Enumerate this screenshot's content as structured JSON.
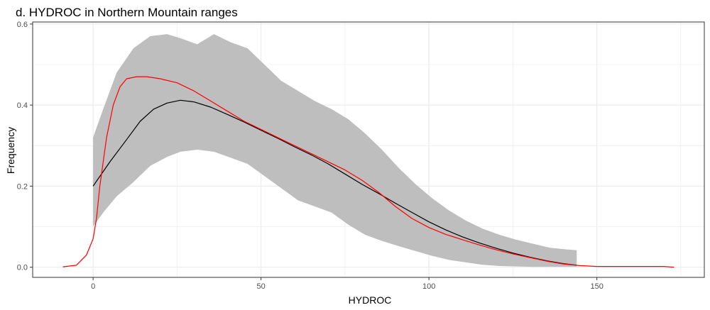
{
  "chart_data": {
    "type": "area",
    "title": "d. HYDROC in Northern Mountain ranges",
    "xlabel": "HYDROC",
    "ylabel": "Frequency",
    "xlim": [
      -18,
      182
    ],
    "ylim": [
      -0.025,
      0.605
    ],
    "xticks": [
      0,
      50,
      100,
      150
    ],
    "xtick_labels": [
      "0",
      "50",
      "100",
      "150"
    ],
    "yticks": [
      0.0,
      0.2,
      0.4,
      0.6
    ],
    "ytick_labels": [
      "0.0",
      "0.2",
      "0.4",
      "0.6"
    ],
    "grid": true,
    "legend": "none",
    "colors": {
      "band": "#bebebe",
      "mean_line": "#000000",
      "density_line": "#ff0000",
      "grid": "#ebebeb",
      "panel_border": "#333333"
    },
    "band": {
      "x": [
        0,
        3,
        7,
        12,
        17,
        22,
        26,
        31,
        36,
        41,
        46,
        51,
        56,
        61,
        66,
        71,
        76,
        81,
        86,
        91,
        96,
        101,
        106,
        111,
        116,
        121,
        126,
        131,
        136,
        141,
        144
      ],
      "upper": [
        0.32,
        0.39,
        0.48,
        0.54,
        0.57,
        0.575,
        0.565,
        0.55,
        0.575,
        0.555,
        0.54,
        0.5,
        0.46,
        0.435,
        0.41,
        0.39,
        0.365,
        0.33,
        0.29,
        0.245,
        0.205,
        0.17,
        0.14,
        0.115,
        0.095,
        0.08,
        0.068,
        0.058,
        0.048,
        0.044,
        0.042
      ],
      "lower": [
        0.1,
        0.135,
        0.175,
        0.21,
        0.25,
        0.272,
        0.285,
        0.29,
        0.285,
        0.27,
        0.255,
        0.225,
        0.195,
        0.165,
        0.15,
        0.135,
        0.105,
        0.08,
        0.065,
        0.052,
        0.04,
        0.028,
        0.018,
        0.012,
        0.006,
        0.003,
        0.002,
        0.001,
        0.001,
        0.001,
        0.001
      ]
    },
    "series": [
      {
        "x": [
          0,
          5,
          10,
          14,
          18,
          22,
          26,
          30,
          35,
          40,
          45,
          50,
          55,
          60,
          65,
          70,
          75,
          80,
          85,
          90,
          95,
          100,
          105,
          110,
          115,
          120,
          125,
          130,
          135,
          140,
          144
        ],
        "values": [
          0.2,
          0.26,
          0.315,
          0.36,
          0.39,
          0.405,
          0.412,
          0.408,
          0.395,
          0.377,
          0.358,
          0.338,
          0.318,
          0.297,
          0.277,
          0.255,
          0.23,
          0.205,
          0.182,
          0.158,
          0.135,
          0.112,
          0.092,
          0.075,
          0.06,
          0.047,
          0.035,
          0.025,
          0.016,
          0.009,
          0.005
        ]
      },
      {
        "x": [
          -9,
          -5,
          -2,
          0,
          1,
          2,
          4,
          6,
          8,
          10,
          13,
          16,
          20,
          25,
          30,
          35,
          40,
          45,
          50,
          55,
          60,
          65,
          70,
          75,
          80,
          85,
          90,
          95,
          100,
          105,
          110,
          115,
          120,
          125,
          130,
          135,
          140,
          145,
          150,
          155,
          160,
          165,
          170,
          173
        ],
        "values": [
          0.001,
          0.005,
          0.03,
          0.07,
          0.12,
          0.2,
          0.32,
          0.4,
          0.445,
          0.465,
          0.47,
          0.47,
          0.465,
          0.455,
          0.435,
          0.41,
          0.385,
          0.36,
          0.34,
          0.32,
          0.3,
          0.28,
          0.26,
          0.24,
          0.215,
          0.185,
          0.15,
          0.12,
          0.098,
          0.081,
          0.068,
          0.055,
          0.043,
          0.033,
          0.024,
          0.015,
          0.008,
          0.004,
          0.002,
          0.002,
          0.002,
          0.002,
          0.002,
          0.0
        ]
      }
    ]
  }
}
